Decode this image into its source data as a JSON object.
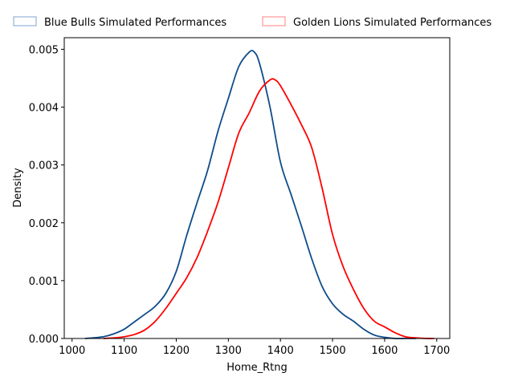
{
  "chart_data": {
    "type": "line",
    "title": "",
    "xlabel": "Home_Rtng",
    "ylabel": "Density",
    "xlim": [
      985,
      1725
    ],
    "ylim": [
      0,
      0.0052
    ],
    "xticks": [
      1000,
      1100,
      1200,
      1300,
      1400,
      1500,
      1600,
      1700
    ],
    "yticks": [
      0.0,
      0.001,
      0.002,
      0.003,
      0.004,
      0.005
    ],
    "ytick_labels": [
      "0.000",
      "0.001",
      "0.002",
      "0.003",
      "0.004",
      "0.005"
    ],
    "grid": false,
    "legend_placement": "top, above plot, two columns",
    "series": [
      {
        "name": "Blue Bulls Simulated Performances",
        "color": "#0f4c8a",
        "legend_fill": "#a8c0dc",
        "x": [
          1025,
          1040,
          1060,
          1080,
          1100,
          1120,
          1140,
          1160,
          1180,
          1200,
          1220,
          1240,
          1260,
          1280,
          1300,
          1320,
          1340,
          1350,
          1360,
          1380,
          1400,
          1420,
          1440,
          1460,
          1480,
          1500,
          1520,
          1540,
          1560,
          1580,
          1600,
          1620,
          1640,
          1660
        ],
        "y": [
          0.0,
          1e-05,
          3e-05,
          8e-05,
          0.00016,
          0.00029,
          0.00042,
          0.00056,
          0.00078,
          0.00116,
          0.00178,
          0.00235,
          0.0029,
          0.00358,
          0.00415,
          0.0047,
          0.00495,
          0.00495,
          0.00475,
          0.004,
          0.00305,
          0.0025,
          0.00195,
          0.00138,
          0.0009,
          0.0006,
          0.00042,
          0.0003,
          0.00016,
          6e-05,
          2e-05,
          0.0,
          0.0,
          0.0
        ]
      },
      {
        "name": "Golden Lions Simulated Performances",
        "color": "#ff0000",
        "legend_fill": "#ffb3b3",
        "x": [
          1060,
          1080,
          1100,
          1120,
          1140,
          1160,
          1180,
          1200,
          1220,
          1240,
          1260,
          1280,
          1300,
          1320,
          1340,
          1360,
          1380,
          1390,
          1400,
          1420,
          1440,
          1460,
          1480,
          1500,
          1520,
          1540,
          1560,
          1580,
          1600,
          1620,
          1640,
          1660,
          1680,
          1695
        ],
        "y": [
          0.0,
          1e-05,
          3e-05,
          7e-05,
          0.00015,
          0.0003,
          0.00052,
          0.00078,
          0.00105,
          0.0014,
          0.00185,
          0.00235,
          0.00295,
          0.00355,
          0.0039,
          0.00428,
          0.00447,
          0.00447,
          0.00437,
          0.00405,
          0.0037,
          0.0033,
          0.0026,
          0.0018,
          0.00125,
          0.00085,
          0.00052,
          0.0003,
          0.0002,
          0.0001,
          3e-05,
          1e-05,
          0.0,
          0.0
        ]
      }
    ]
  }
}
